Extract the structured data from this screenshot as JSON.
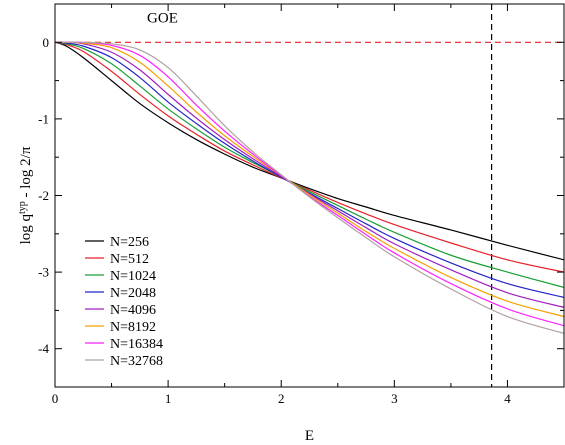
{
  "chart_data": {
    "type": "line",
    "xlabel": "E",
    "ylabel": "log q",
    "ylabel_sup": "typ",
    "ylabel_rest": " - log 2/π",
    "xlim": [
      0,
      4.5
    ],
    "ylim": [
      -4.5,
      0.5
    ],
    "xticks": [
      0,
      1,
      2,
      3,
      4
    ],
    "xtick_labels": [
      "0",
      "1",
      "2",
      "3",
      "4"
    ],
    "yticks": [
      0,
      -1,
      -2,
      -3,
      -4
    ],
    "ytick_labels": [
      "0",
      "-1",
      "-2",
      "-3",
      "-4"
    ],
    "grid": false,
    "legend_position": "lower-left",
    "reference_lines": [
      {
        "orientation": "horizontal",
        "value": 0,
        "style": "dashed",
        "color": "#e8202a",
        "label": "GOE"
      },
      {
        "orientation": "vertical",
        "value": 3.86,
        "style": "dashed",
        "color": "#000000"
      }
    ],
    "series": [
      {
        "name": "N=256",
        "color": "#000000",
        "x": [
          0,
          0.1,
          0.25,
          0.5,
          0.75,
          1.0,
          1.25,
          1.5,
          1.75,
          2.0,
          2.25,
          2.5,
          2.75,
          3.0,
          3.5,
          4.0,
          4.5
        ],
        "y": [
          0,
          -0.05,
          -0.2,
          -0.5,
          -0.8,
          -1.05,
          -1.27,
          -1.46,
          -1.63,
          -1.77,
          -1.91,
          -2.04,
          -2.15,
          -2.26,
          -2.45,
          -2.65,
          -2.84
        ]
      },
      {
        "name": "N=512",
        "color": "#e8202a",
        "x": [
          0,
          0.1,
          0.25,
          0.5,
          0.75,
          1.0,
          1.25,
          1.5,
          1.75,
          2.0,
          2.25,
          2.5,
          2.75,
          3.0,
          3.5,
          4.0,
          4.5
        ],
        "y": [
          0,
          -0.03,
          -0.12,
          -0.38,
          -0.68,
          -0.96,
          -1.2,
          -1.42,
          -1.6,
          -1.77,
          -1.93,
          -2.09,
          -2.24,
          -2.38,
          -2.62,
          -2.84,
          -3.0
        ]
      },
      {
        "name": "N=1024",
        "color": "#1a9e35",
        "x": [
          0,
          0.1,
          0.25,
          0.5,
          0.75,
          1.0,
          1.25,
          1.5,
          1.75,
          2.0,
          2.25,
          2.5,
          2.75,
          3.0,
          3.5,
          4.0,
          4.5
        ],
        "y": [
          0,
          -0.02,
          -0.08,
          -0.28,
          -0.57,
          -0.87,
          -1.13,
          -1.37,
          -1.57,
          -1.76,
          -1.95,
          -2.13,
          -2.31,
          -2.48,
          -2.78,
          -3.0,
          -3.2
        ]
      },
      {
        "name": "N=2048",
        "color": "#2424c8",
        "x": [
          0,
          0.1,
          0.25,
          0.5,
          0.75,
          1.0,
          1.25,
          1.5,
          1.75,
          2.0,
          2.25,
          2.5,
          2.75,
          3.0,
          3.5,
          4.0,
          4.5
        ],
        "y": [
          0,
          -0.01,
          -0.05,
          -0.2,
          -0.46,
          -0.78,
          -1.06,
          -1.32,
          -1.55,
          -1.76,
          -1.97,
          -2.17,
          -2.37,
          -2.56,
          -2.88,
          -3.15,
          -3.33
        ]
      },
      {
        "name": "N=4096",
        "color": "#a020c0",
        "x": [
          0,
          0.1,
          0.25,
          0.5,
          0.75,
          1.0,
          1.25,
          1.5,
          1.75,
          2.0,
          2.25,
          2.5,
          2.75,
          3.0,
          3.5,
          4.0,
          4.5
        ],
        "y": [
          0,
          0,
          -0.02,
          -0.13,
          -0.36,
          -0.68,
          -0.99,
          -1.27,
          -1.52,
          -1.75,
          -1.98,
          -2.2,
          -2.42,
          -2.63,
          -2.97,
          -3.27,
          -3.46
        ]
      },
      {
        "name": "N=8192",
        "color": "#f5a000",
        "x": [
          0,
          0.1,
          0.25,
          0.5,
          0.75,
          1.0,
          1.25,
          1.5,
          1.75,
          2.0,
          2.25,
          2.5,
          2.75,
          3.0,
          3.5,
          4.0,
          4.5
        ],
        "y": [
          0,
          0,
          -0.01,
          -0.07,
          -0.26,
          -0.57,
          -0.91,
          -1.22,
          -1.49,
          -1.74,
          -1.99,
          -2.23,
          -2.47,
          -2.69,
          -3.07,
          -3.38,
          -3.58
        ]
      },
      {
        "name": "N=16384",
        "color": "#ff20ff",
        "x": [
          0,
          0.1,
          0.25,
          0.5,
          0.75,
          1.0,
          1.25,
          1.5,
          1.75,
          2.0,
          2.25,
          2.5,
          2.75,
          3.0,
          3.5,
          4.0,
          4.5
        ],
        "y": [
          0,
          0,
          0,
          -0.04,
          -0.17,
          -0.45,
          -0.82,
          -1.16,
          -1.46,
          -1.74,
          -2.01,
          -2.26,
          -2.51,
          -2.75,
          -3.15,
          -3.48,
          -3.7
        ]
      },
      {
        "name": "N=32768",
        "color": "#b0a0a0",
        "x": [
          0,
          0.1,
          0.25,
          0.5,
          0.75,
          1.0,
          1.25,
          1.5,
          1.75,
          2.0,
          2.25,
          2.5,
          2.75,
          3.0,
          3.5,
          4.0,
          4.5
        ],
        "y": [
          0,
          0,
          0,
          -0.02,
          -0.1,
          -0.33,
          -0.7,
          -1.09,
          -1.43,
          -1.73,
          -2.02,
          -2.29,
          -2.55,
          -2.8,
          -3.22,
          -3.58,
          -3.8
        ]
      }
    ]
  }
}
